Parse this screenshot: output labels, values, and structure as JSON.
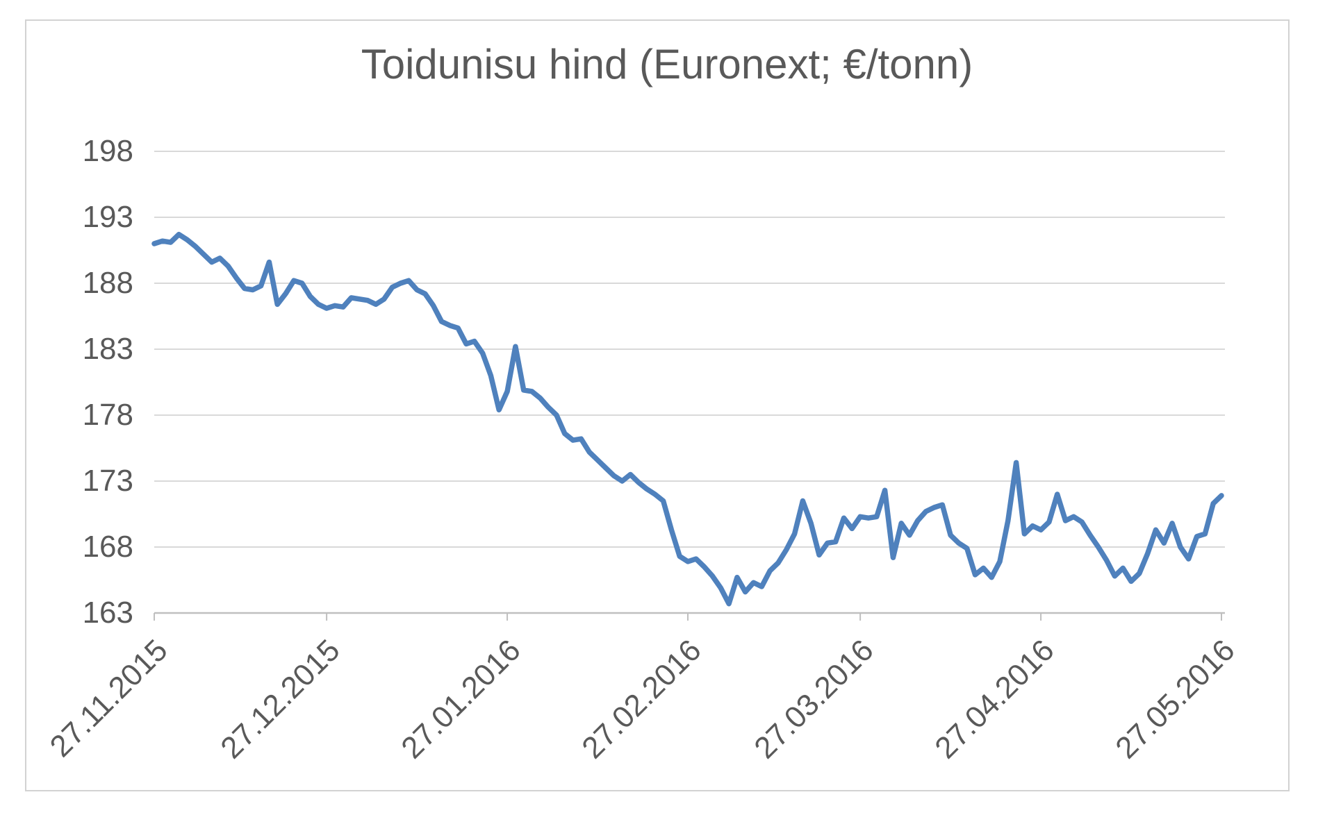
{
  "chart": {
    "title": "Toidunisu hind (Euronext; €/tonn)",
    "colors": {
      "line": "#4F81BD",
      "gridline": "#D9D9D9",
      "axis_line": "#BFBFBF",
      "text": "#595959",
      "frame_border": "#D2D2D2",
      "background": "#FFFFFF"
    }
  },
  "chart_data": {
    "type": "line",
    "title": "Toidunisu hind (Euronext; €/tonn)",
    "xlabel": "",
    "ylabel": "",
    "grid": true,
    "legend": "none",
    "ylim": [
      163,
      198
    ],
    "y_ticks": [
      198,
      193,
      188,
      183,
      178,
      173,
      168,
      163
    ],
    "x_tick_labels": [
      "27.11.2015",
      "27.12.2015",
      "27.01.2016",
      "27.02.2016",
      "27.03.2016",
      "27.04.2016",
      "27.05.2016"
    ],
    "x_tick_indices": [
      0,
      21,
      43,
      65,
      86,
      108,
      130
    ],
    "series": [
      {
        "name": "Toidunisu hind (Euronext; €/tonn)",
        "values": [
          191.0,
          191.2,
          191.1,
          191.7,
          191.3,
          190.8,
          190.2,
          189.6,
          189.9,
          189.3,
          188.4,
          187.6,
          187.5,
          187.8,
          189.6,
          186.4,
          187.2,
          188.2,
          188.0,
          187.0,
          186.4,
          186.1,
          186.3,
          186.2,
          186.9,
          186.8,
          186.7,
          186.4,
          186.8,
          187.7,
          188.0,
          188.2,
          187.5,
          187.2,
          186.3,
          185.1,
          184.8,
          184.6,
          183.4,
          183.6,
          182.7,
          181.0,
          178.4,
          179.8,
          183.2,
          179.9,
          179.8,
          179.3,
          178.6,
          178.0,
          176.6,
          176.1,
          176.2,
          175.2,
          174.6,
          174.0,
          173.4,
          173.0,
          173.5,
          172.9,
          172.4,
          172.0,
          171.5,
          169.3,
          167.3,
          166.9,
          167.1,
          166.5,
          165.8,
          164.9,
          163.7,
          165.7,
          164.6,
          165.3,
          165.0,
          166.2,
          166.8,
          167.8,
          169.0,
          171.5,
          169.8,
          167.4,
          168.3,
          168.4,
          170.2,
          169.4,
          170.3,
          170.2,
          170.3,
          172.3,
          167.2,
          169.8,
          168.9,
          170.0,
          170.7,
          171.0,
          171.2,
          168.9,
          168.3,
          167.9,
          165.9,
          166.4,
          165.7,
          166.9,
          170.0,
          174.4,
          169.0,
          169.6,
          169.3,
          169.9,
          172.0,
          170.0,
          170.3,
          169.9,
          168.9,
          168.0,
          167.0,
          165.8,
          166.4,
          165.4,
          166.0,
          167.5,
          169.3,
          168.3,
          169.8,
          168.0,
          167.1,
          168.8,
          169.0,
          171.3,
          171.9
        ]
      }
    ]
  }
}
